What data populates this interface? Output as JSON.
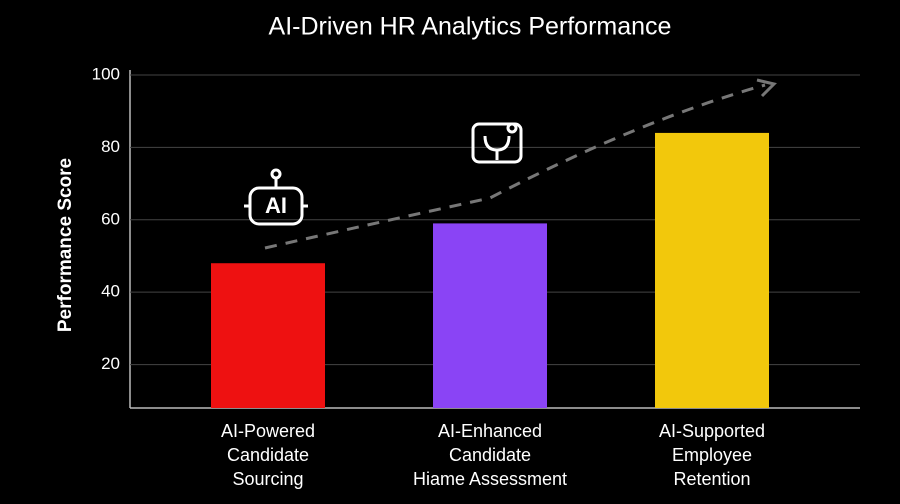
{
  "chart_data": {
    "type": "bar",
    "title": "AI-Driven HR Analytics Performance",
    "y_label": "Performance Score",
    "categories": [
      [
        "AI-Powered",
        "Candidate",
        "Sourcing"
      ],
      [
        "AI-Enhanced",
        "Candidate",
        "Hiame Assessment"
      ],
      [
        "AI-Supported",
        "Employee",
        "Retention"
      ]
    ],
    "values": [
      48,
      59,
      84
    ],
    "colors": [
      "#ee1111",
      "#8a44f5",
      "#f2c80c"
    ],
    "ylim": [
      8,
      100
    ],
    "yticks": [
      20,
      40,
      60,
      80,
      100
    ],
    "grid": true,
    "annotations": [
      "AI"
    ]
  }
}
